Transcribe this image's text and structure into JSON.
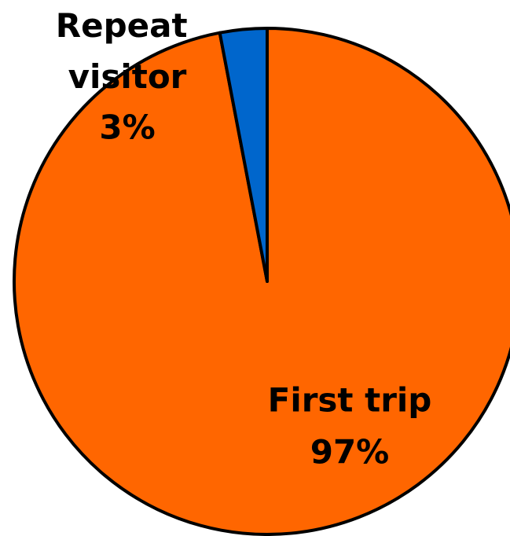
{
  "chart_data": {
    "type": "pie",
    "categories": [
      "First trip",
      "Repeat visitor"
    ],
    "values": [
      97,
      3
    ],
    "value_labels": [
      "97%",
      "3%"
    ],
    "colors": [
      "#ff6600",
      "#0066cc"
    ]
  }
}
